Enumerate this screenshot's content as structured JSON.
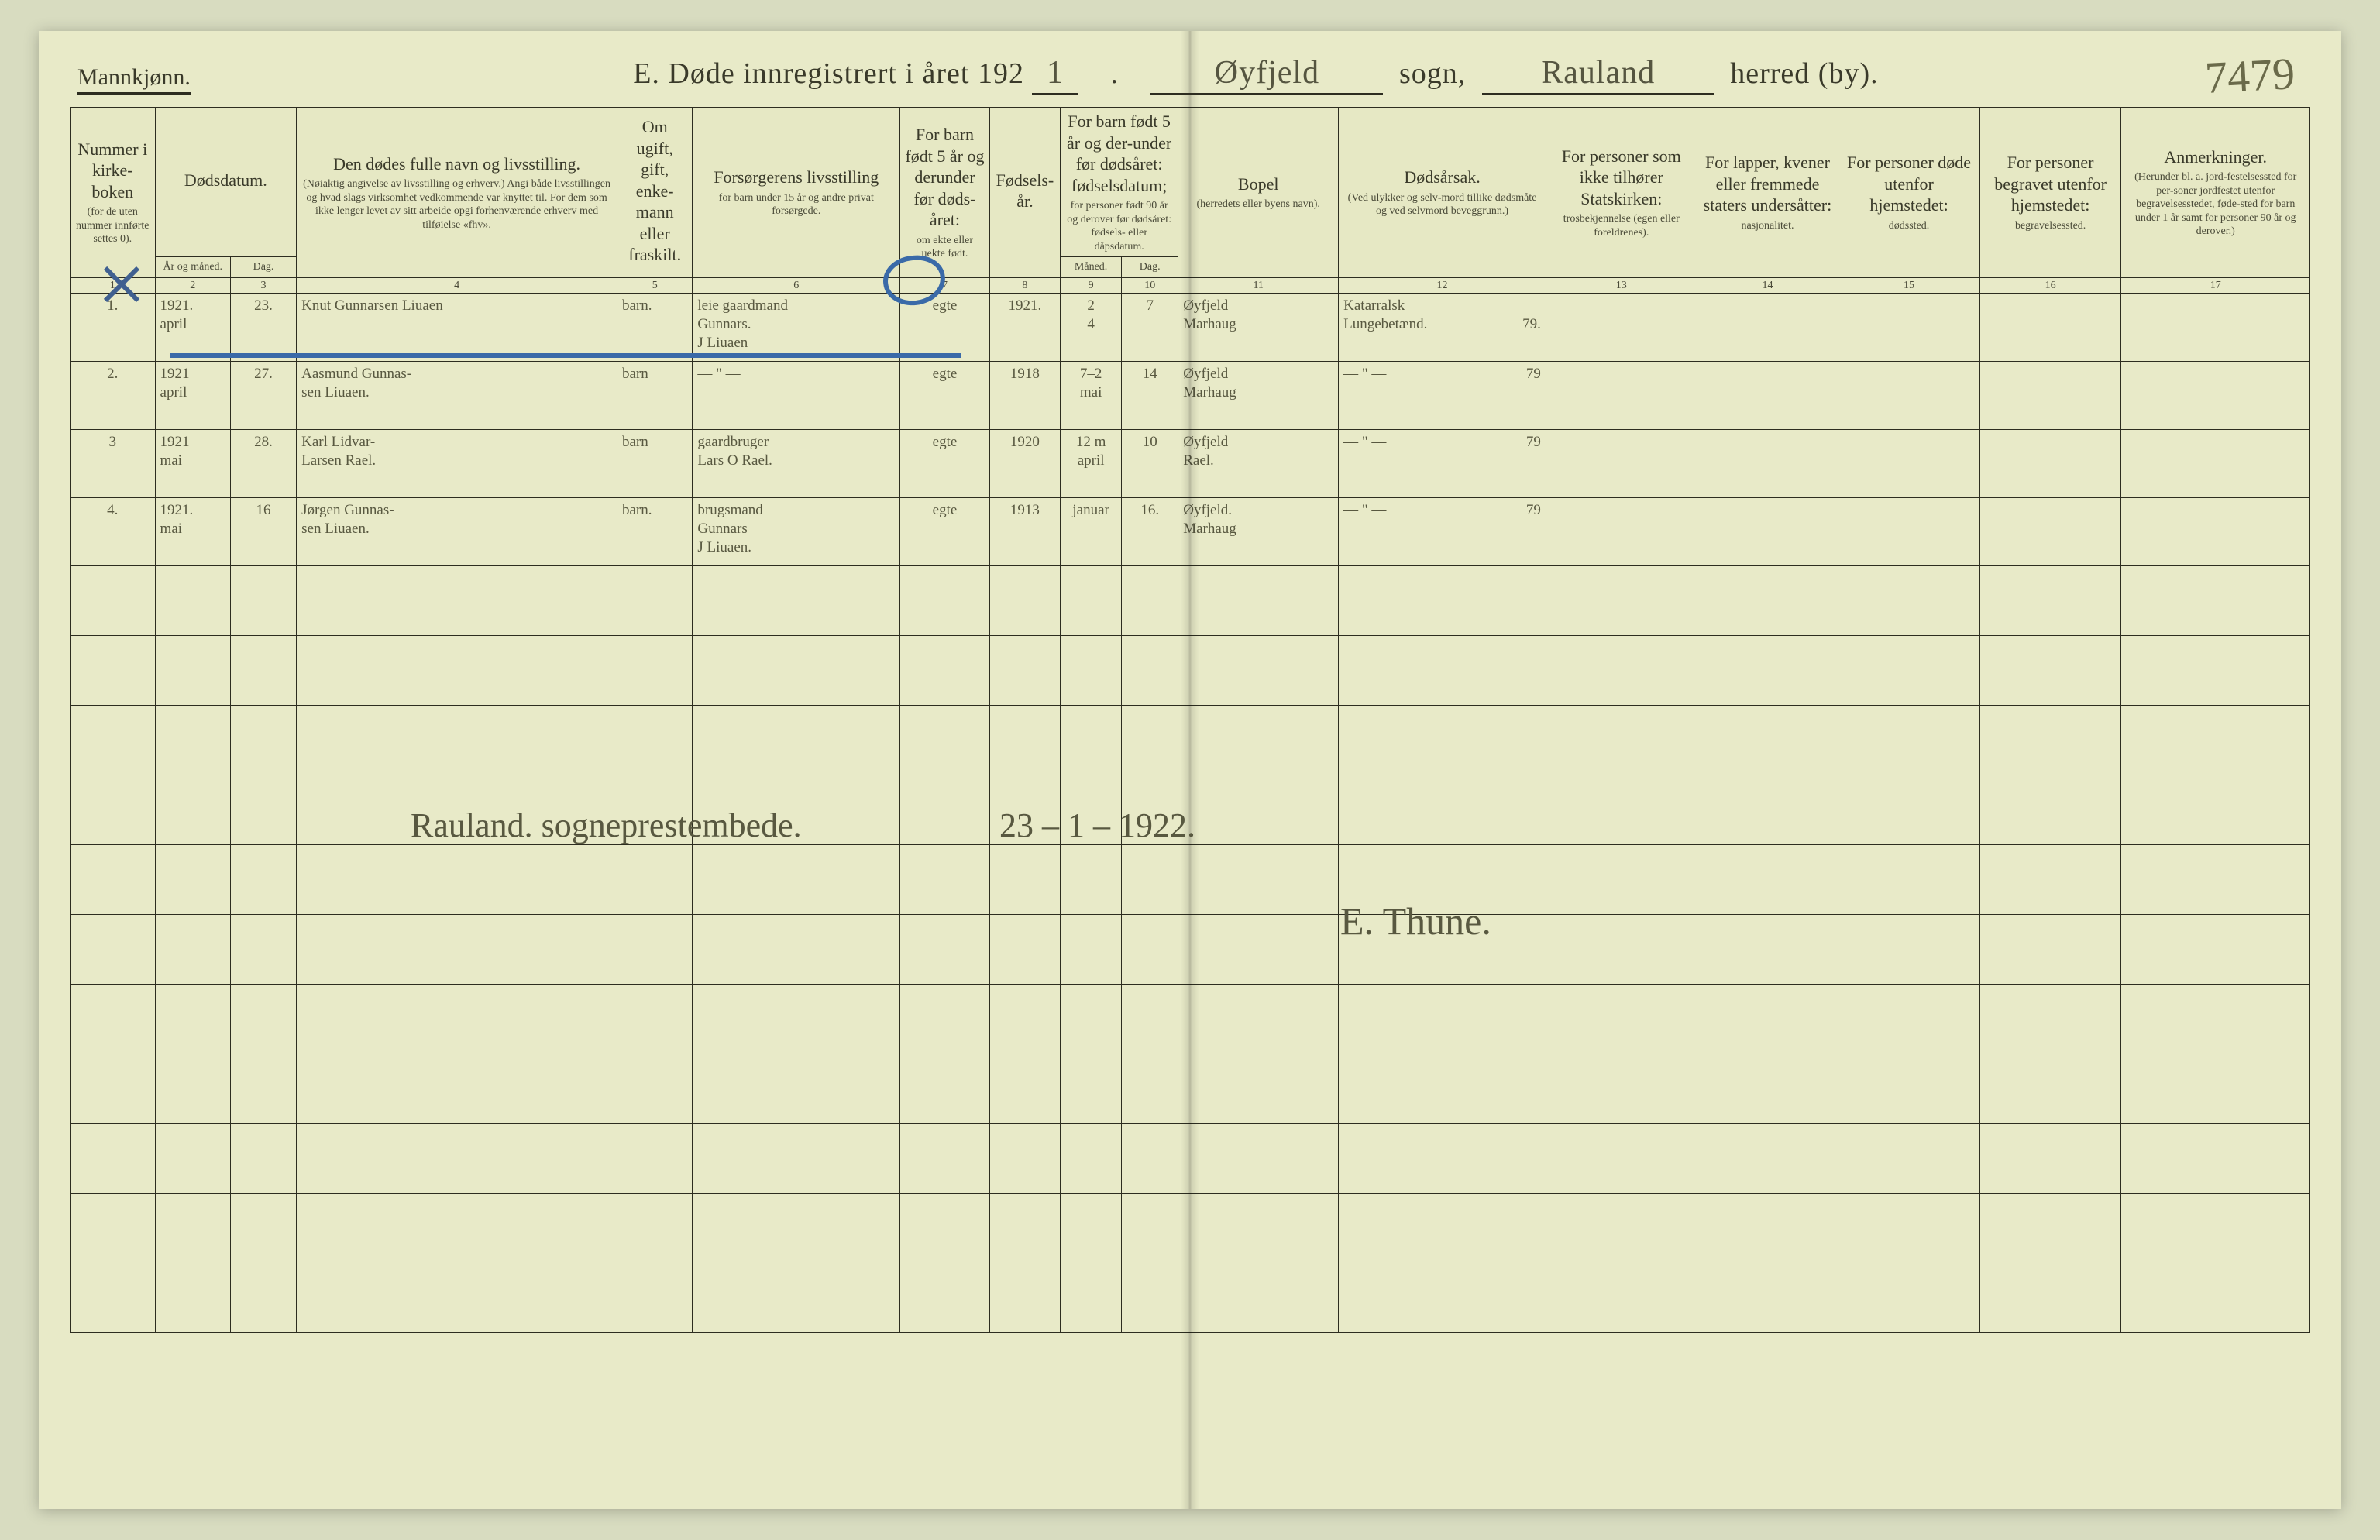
{
  "header": {
    "gender_label": "Mannkjønn.",
    "title_prefix": "E.  Døde innregistrert i året 192",
    "year_suffix_written": "1",
    "sogn_word": "sogn,",
    "sogn_value": "Øyfjeld",
    "herred_word": "herred (by).",
    "herred_value": "Rauland",
    "page_number_handwritten": "7479"
  },
  "columns": {
    "c1": {
      "num": "1",
      "main": "Nummer i kirke-boken",
      "sub": "(for de uten nummer innførte settes 0)."
    },
    "c2": {
      "num": "2",
      "main": "Dødsdatum.",
      "sub": "År og måned."
    },
    "c3": {
      "num": "3",
      "main": "",
      "sub": "Dag."
    },
    "c4": {
      "num": "4",
      "main": "Den dødes fulle navn og livsstilling.",
      "sub": "(Nøiaktig angivelse av livsstilling og erhverv.) Angi både livsstillingen og hvad slags virksomhet vedkommende var knyttet til. For dem som ikke lenger levet av sitt arbeide opgi forhenværende erhverv med tilføielse «fhv»."
    },
    "c5": {
      "num": "5",
      "main": "Om ugift, gift, enke-mann eller fraskilt.",
      "sub": ""
    },
    "c6": {
      "num": "6",
      "main": "Forsørgerens livsstilling",
      "sub": "for barn under 15 år og andre privat forsørgede."
    },
    "c7": {
      "num": "7",
      "main": "For barn født 5 år og derunder før døds-året:",
      "sub": "om ekte eller uekte født."
    },
    "c8": {
      "num": "8",
      "main": "Fødsels-år.",
      "sub": ""
    },
    "c9": {
      "num": "9",
      "main": "For barn født 5 år og der-under før dødsåret: fødselsdatum;",
      "sub": "Måned."
    },
    "c10": {
      "num": "10",
      "main": "for personer født 90 år og derover før dødsåret: fødsels- eller dåpsdatum.",
      "sub": "Dag."
    },
    "c11": {
      "num": "11",
      "main": "Bopel",
      "sub": "(herredets eller byens navn)."
    },
    "c12": {
      "num": "12",
      "main": "Dødsårsak.",
      "sub": "(Ved ulykker og selv-mord tillike dødsmåte og ved selvmord beveggrunn.)"
    },
    "c13": {
      "num": "13",
      "main": "For personer som ikke tilhører Statskirken:",
      "sub": "trosbekjennelse (egen eller foreldrenes)."
    },
    "c14": {
      "num": "14",
      "main": "For lapper, kvener eller fremmede staters undersåtter:",
      "sub": "nasjonalitet."
    },
    "c15": {
      "num": "15",
      "main": "For personer døde utenfor hjemstedet:",
      "sub": "dødssted."
    },
    "c16": {
      "num": "16",
      "main": "For personer begravet utenfor hjemstedet:",
      "sub": "begravelsessted."
    },
    "c17": {
      "num": "17",
      "main": "Anmerkninger.",
      "sub": "(Herunder bl. a. jord-festelsessted for per-soner jordfestet utenfor begravelsesstedet, føde-sted for barn under 1 år samt for personer 90 år og derover.)"
    }
  },
  "rows": [
    {
      "num": "1.",
      "year_month": "1921.\napril",
      "day": "23.",
      "name": "Knut Gunnarsen Liuaen",
      "civil": "barn.",
      "provider": "leie gaardmand\nGunnars.\nJ Liuaen",
      "ekte": "egte",
      "birth_year": "1921.",
      "birth_month": "2\n4",
      "birth_day": "7",
      "residence": "Øyfjeld\nMarhaug",
      "cause": "Katarralsk\nLungebetænd.",
      "cause_suffix": "79."
    },
    {
      "num": "2.",
      "year_month": "1921\napril",
      "day": "27.",
      "name": "Aasmund Gunnas-\nsen Liuaen.",
      "civil": "barn",
      "provider": "— \" —",
      "ekte": "egte",
      "birth_year": "1918",
      "birth_month": "7–2\nmai",
      "birth_day": "14",
      "residence": "Øyfjeld\nMarhaug",
      "cause": "— \" —",
      "cause_suffix": "79"
    },
    {
      "num": "3",
      "year_month": "1921\nmai",
      "day": "28.",
      "name": "Karl Lidvar-\nLarsen Rael.",
      "civil": "barn",
      "provider": "gaardbruger\nLars O Rael.",
      "ekte": "egte",
      "birth_year": "1920",
      "birth_month": "12 m\napril",
      "birth_day": "10",
      "residence": "Øyfjeld\nRael.",
      "cause": "— \" —",
      "cause_suffix": "79"
    },
    {
      "num": "4.",
      "year_month": "1921.\nmai",
      "day": "16",
      "name": "Jørgen Gunnas-\nsen Liuaen.",
      "civil": "barn.",
      "provider": "brugsmand\nGunnars\nJ Liuaen.",
      "ekte": "egte",
      "birth_year": "1913",
      "birth_month": "januar",
      "birth_day": "16.",
      "residence": "Øyfjeld.\nMarhaug",
      "cause": "— \" —",
      "cause_suffix": "79"
    }
  ],
  "footer": {
    "place_office": "Rauland.   sogneprestembede.",
    "date": "23 – 1 – 1922.",
    "signature": "E. Thune."
  },
  "colors": {
    "paper": "#e8eac8",
    "ink": "#2d2d20",
    "handwriting": "#585840",
    "blue_pencil": "#3a6aa8",
    "shadow": "#d8dcc0"
  }
}
